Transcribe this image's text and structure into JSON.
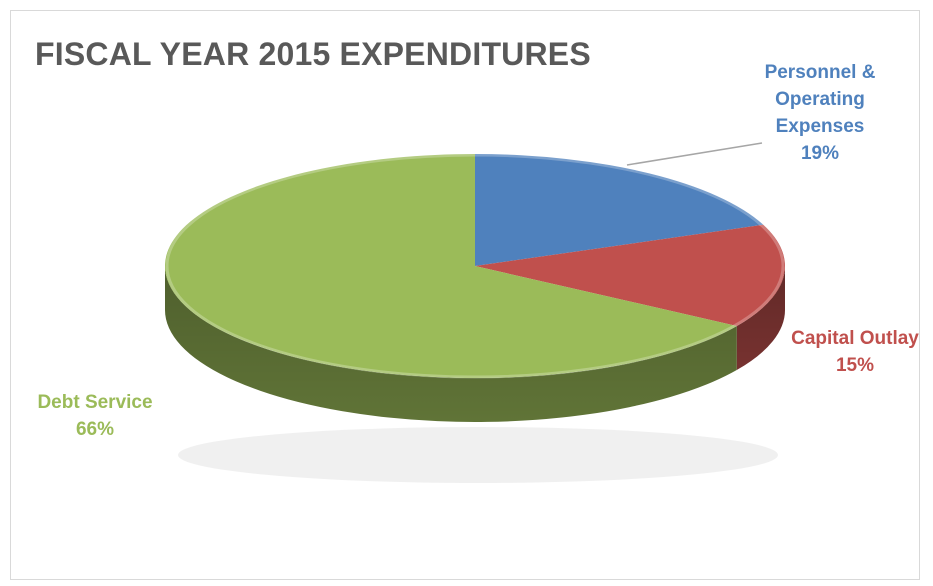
{
  "chart_data": {
    "type": "pie",
    "title": "FISCAL YEAR 2015 EXPENDITURES",
    "slices": [
      {
        "label": "Personnel & Operating Expenses",
        "label_lines": [
          "Personnel &",
          "Operating",
          "Expenses"
        ],
        "value": 19,
        "value_label": "19%",
        "color": "#4f81bd"
      },
      {
        "label": "Capital Outlay",
        "label_lines": [
          "Capital Outlay"
        ],
        "value": 15,
        "value_label": "15%",
        "color": "#c0504d"
      },
      {
        "label": "Debt Service",
        "label_lines": [
          "Debt Service"
        ],
        "value": 66,
        "value_label": "66%",
        "color": "#9bbb59"
      }
    ],
    "style": "3d-pie",
    "legend": "none",
    "data_labels": "outside"
  }
}
